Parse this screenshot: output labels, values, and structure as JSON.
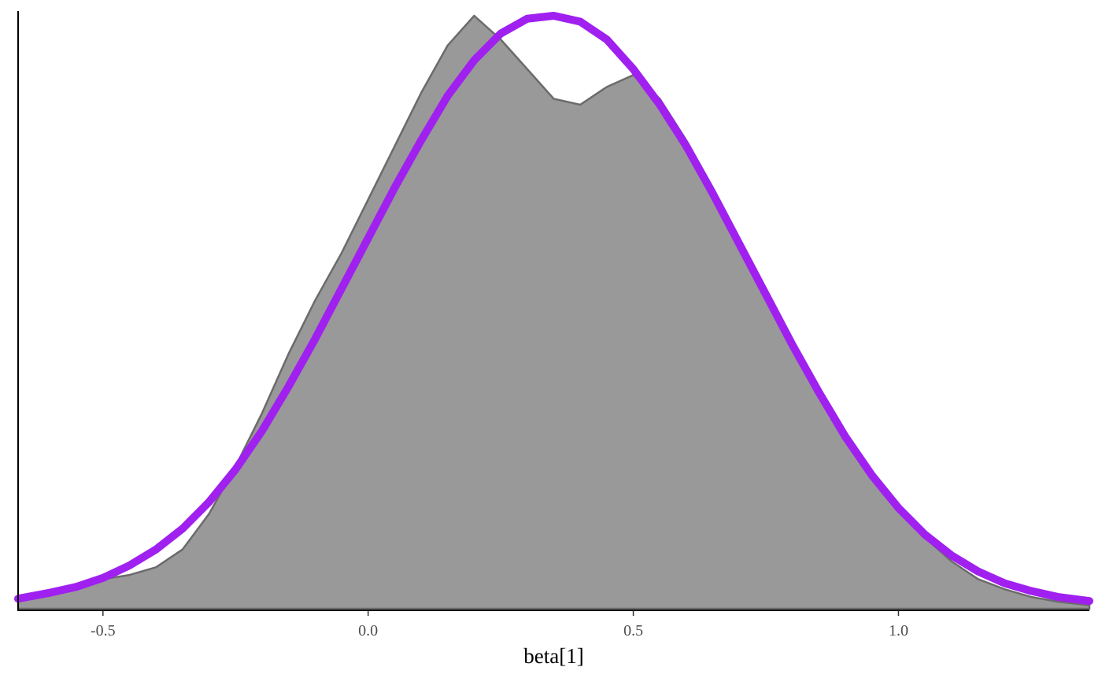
{
  "chart_data": {
    "type": "area",
    "xlabel": "beta[1]",
    "ylabel": "",
    "title": "",
    "xlim": [
      -0.66,
      1.36
    ],
    "ylim": [
      0,
      1.0
    ],
    "x_ticks": [
      -0.5,
      0.0,
      0.5,
      1.0
    ],
    "x_tick_labels": [
      "-0.5",
      "0.0",
      "0.5",
      "1.0"
    ],
    "y_ticks_shown": false,
    "grid": false,
    "legend": "none",
    "series": [
      {
        "type": "area",
        "x": [
          -0.66,
          -0.6,
          -0.5,
          -0.45,
          -0.4,
          -0.35,
          -0.3,
          -0.25,
          -0.2,
          -0.15,
          -0.1,
          -0.05,
          0.0,
          0.05,
          0.1,
          0.15,
          0.2,
          0.25,
          0.3,
          0.35,
          0.4,
          0.45,
          0.5,
          0.55,
          0.6,
          0.65,
          0.7,
          0.75,
          0.8,
          0.85,
          0.9,
          0.95,
          1.0,
          1.05,
          1.1,
          1.15,
          1.2,
          1.25,
          1.3,
          1.36
        ],
        "y": [
          0.02,
          0.032,
          0.05,
          0.057,
          0.07,
          0.1,
          0.16,
          0.24,
          0.33,
          0.43,
          0.52,
          0.6,
          0.69,
          0.78,
          0.87,
          0.95,
          1.0,
          0.96,
          0.91,
          0.86,
          0.85,
          0.88,
          0.9,
          0.86,
          0.79,
          0.71,
          0.62,
          0.52,
          0.44,
          0.36,
          0.29,
          0.23,
          0.17,
          0.12,
          0.08,
          0.05,
          0.033,
          0.02,
          0.012,
          0.006
        ],
        "fill": "#999999",
        "stroke": "#6b6b6b"
      },
      {
        "type": "line",
        "x": [
          -0.66,
          -0.6,
          -0.55,
          -0.5,
          -0.45,
          -0.4,
          -0.35,
          -0.3,
          -0.25,
          -0.2,
          -0.15,
          -0.1,
          -0.05,
          0.0,
          0.05,
          0.1,
          0.15,
          0.2,
          0.25,
          0.3,
          0.35,
          0.4,
          0.45,
          0.5,
          0.55,
          0.6,
          0.65,
          0.7,
          0.75,
          0.8,
          0.85,
          0.9,
          0.95,
          1.0,
          1.05,
          1.1,
          1.15,
          1.2,
          1.25,
          1.3,
          1.36
        ],
        "y": [
          0.017,
          0.027,
          0.037,
          0.052,
          0.073,
          0.1,
          0.135,
          0.18,
          0.235,
          0.3,
          0.375,
          0.455,
          0.54,
          0.625,
          0.71,
          0.79,
          0.865,
          0.925,
          0.97,
          0.995,
          1.0,
          0.99,
          0.96,
          0.91,
          0.85,
          0.78,
          0.7,
          0.615,
          0.53,
          0.445,
          0.365,
          0.29,
          0.225,
          0.17,
          0.125,
          0.09,
          0.063,
          0.043,
          0.03,
          0.02,
          0.013
        ],
        "stroke": "#a020f0"
      }
    ]
  }
}
